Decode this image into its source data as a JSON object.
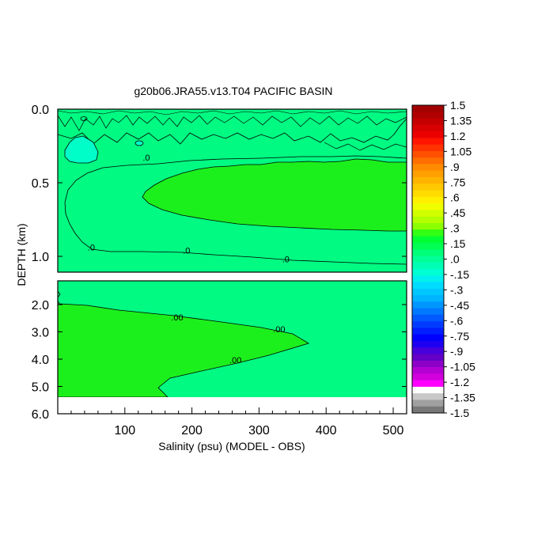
{
  "chart_data": {
    "type": "heatmap",
    "title": "g20b06.JRA55.v13.T04 PACIFIC BASIN",
    "xlabel": "Salinity (psu) (MODEL - OBS)",
    "ylabel": "DEPTH (km)",
    "xlim": [
      0,
      520
    ],
    "x_ticks": [
      100,
      200,
      300,
      400,
      500
    ],
    "x_tick_labels": [
      "100",
      "200",
      "300",
      "400",
      "500"
    ],
    "panels": [
      {
        "name": "upper",
        "ylim": [
          0.0,
          1.1
        ],
        "y_ticks": [
          0.0,
          0.5,
          1.0
        ],
        "y_tick_labels": [
          "0.0",
          "0.5",
          "1.0"
        ],
        "contour_labels": [
          {
            "text": ".0",
            "x": 132,
            "y": 0.35
          },
          {
            "text": ".0",
            "x": 50,
            "y": 0.96
          },
          {
            "text": ".0",
            "x": 192,
            "y": 0.98
          },
          {
            "text": ".0",
            "x": 340,
            "y": 1.04
          }
        ]
      },
      {
        "name": "lower",
        "ylim": [
          1.0,
          6.0
        ],
        "y_ticks": [
          2.0,
          3.0,
          4.0,
          5.0,
          6.0
        ],
        "y_tick_labels": [
          "2.0",
          "3.0",
          "4.0",
          "5.0",
          "6.0"
        ],
        "contour_labels": [
          {
            "text": ".00",
            "x": 178,
            "y": 2.58
          },
          {
            "text": ".00",
            "x": 330,
            "y": 3.02
          },
          {
            "text": ".00",
            "x": 265,
            "y": 4.14
          }
        ]
      }
    ],
    "colorbar": {
      "levels": [
        -1.5,
        -1.35,
        -1.2,
        -1.05,
        -0.9,
        -0.75,
        -0.6,
        -0.45,
        -0.3,
        -0.15,
        0.0,
        0.15,
        0.3,
        0.45,
        0.6,
        0.75,
        0.9,
        1.05,
        1.2,
        1.35,
        1.5
      ],
      "labels": [
        "1.5",
        "1.35",
        "1.2",
        "1.05",
        ".9",
        ".75",
        ".6",
        ".45",
        ".3",
        ".15",
        ".0",
        "-.15",
        "-.3",
        "-.45",
        "-.6",
        "-.75",
        "-.9",
        "-1.05",
        "-1.2",
        "-1.35",
        "-1.5"
      ],
      "colors_top_to_bottom": [
        "#a00000",
        "#b00000",
        "#c40000",
        "#d80000",
        "#ec0000",
        "#ff1400",
        "#ff3200",
        "#ff5000",
        "#ff6e00",
        "#ff8c00",
        "#ffa000",
        "#ffb400",
        "#ffc800",
        "#ffdc00",
        "#fff000",
        "#f0ff00",
        "#d2ff00",
        "#b4ff00",
        "#8cff00",
        "#32ff14",
        "#00ff32",
        "#00ff50",
        "#00ff78",
        "#00ff96",
        "#00ffb4",
        "#00ffd2",
        "#00f0f0",
        "#00dcff",
        "#00c8ff",
        "#00b4ff",
        "#0096ff",
        "#0078ff",
        "#005aff",
        "#003cff",
        "#001eff",
        "#0000ff",
        "#1e00f0",
        "#4600dc",
        "#6400c8",
        "#8c00c8",
        "#b400d2",
        "#d200dc",
        "#ff00ff",
        "#ffffff",
        "#c8c8c8",
        "#a0a0a0",
        "#787878"
      ]
    },
    "field_colors": {
      "background": "#00fa82",
      "green_core": "#1cf01c",
      "cyan_patch": "#00ffc8"
    }
  }
}
